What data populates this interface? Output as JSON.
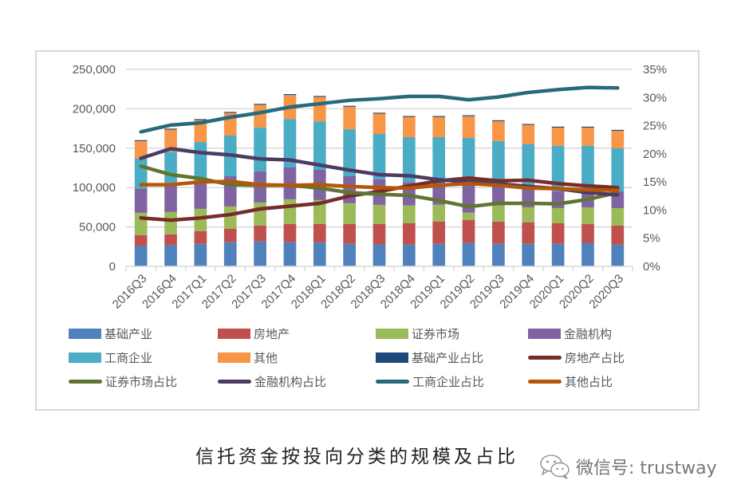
{
  "chart_data": {
    "type": "bar",
    "subtype": "stacked-bar-with-lines",
    "title": "信托资金按投向分类的规模及占比",
    "categories": [
      "2016Q3",
      "2016Q4",
      "2017Q1",
      "2017Q2",
      "2017Q3",
      "2017Q4",
      "2018Q1",
      "2018Q2",
      "2018Q3",
      "2018Q4",
      "2019Q1",
      "2019Q2",
      "2019Q3",
      "2019Q4",
      "2020Q1",
      "2020Q2",
      "2020Q3"
    ],
    "y_left": {
      "ylim": [
        0,
        250000
      ],
      "ticks": [
        "0",
        "50,000",
        "100,000",
        "150,000",
        "200,000",
        "250,000"
      ],
      "tick_values": [
        0,
        50000,
        100000,
        150000,
        200000,
        250000
      ]
    },
    "y_right": {
      "ylim": [
        0,
        35
      ],
      "ticks": [
        "0%",
        "5%",
        "10%",
        "15%",
        "20%",
        "25%",
        "30%",
        "35%"
      ],
      "tick_values": [
        0,
        5,
        10,
        15,
        20,
        25,
        30,
        35
      ]
    },
    "grid": true,
    "legend_position": "bottom",
    "bar_series": [
      {
        "name": "基础产业",
        "color": "#4f81bd",
        "values": [
          25900,
          26900,
          28600,
          30600,
          31600,
          30600,
          30600,
          28600,
          27900,
          27600,
          28600,
          29700,
          28600,
          28600,
          28600,
          29400,
          27600
        ]
      },
      {
        "name": "房地产",
        "color": "#c0504d",
        "values": [
          13800,
          13800,
          16200,
          17200,
          20200,
          23200,
          23200,
          25200,
          25900,
          27100,
          28400,
          29300,
          28400,
          27400,
          26100,
          24200,
          24300
        ]
      },
      {
        "name": "证券市场",
        "color": "#9bbb59",
        "values": [
          28300,
          28300,
          28200,
          28200,
          29300,
          31300,
          30300,
          26300,
          24200,
          22500,
          21200,
          9100,
          20200,
          18900,
          19200,
          21300,
          22000
        ]
      },
      {
        "name": "金融机构",
        "color": "#8064a2",
        "values": [
          30600,
          37000,
          35700,
          38400,
          39400,
          40400,
          38400,
          34300,
          32400,
          29800,
          32100,
          44200,
          28100,
          28300,
          21200,
          19100,
          21200
        ]
      },
      {
        "name": "工商企业",
        "color": "#4bacc6",
        "values": [
          38400,
          39400,
          49100,
          51600,
          55500,
          61500,
          61500,
          59600,
          57600,
          57000,
          53700,
          50700,
          53700,
          51700,
          58000,
          59100,
          54700
        ]
      },
      {
        "name": "其他",
        "color": "#f79646",
        "values": [
          22000,
          28200,
          27900,
          28800,
          29000,
          30400,
          31000,
          28600,
          25800,
          25600,
          25600,
          27600,
          25200,
          24600,
          23000,
          23000,
          22200
        ]
      },
      {
        "name": "基础产业占比",
        "color": "#1f497d",
        "values": [
          1200,
          1200,
          1200,
          1200,
          1200,
          1200,
          1200,
          1200,
          1200,
          1200,
          1200,
          1200,
          1200,
          1200,
          1200,
          1200,
          1200
        ]
      }
    ],
    "line_series": [
      {
        "name": "房地产占比",
        "color": "#772c2a",
        "axis": "right",
        "values": [
          8.6,
          8.2,
          8.6,
          9.2,
          10.2,
          10.7,
          11.2,
          12.5,
          13.3,
          14.3,
          15.2,
          15.7,
          15.2,
          15.3,
          14.7,
          14.3,
          14.0
        ]
      },
      {
        "name": "证券市场占比",
        "color": "#5f7530",
        "axis": "right",
        "values": [
          17.8,
          16.3,
          15.6,
          14.5,
          14.4,
          14.4,
          13.9,
          13.1,
          12.8,
          12.6,
          11.7,
          10.6,
          11.2,
          11.2,
          11.1,
          11.9,
          13.1
        ]
      },
      {
        "name": "金融机构占比",
        "color": "#4d3b62",
        "axis": "right",
        "values": [
          19.2,
          20.9,
          20.2,
          19.8,
          19.1,
          18.9,
          18.0,
          17.1,
          16.3,
          16.1,
          15.4,
          15.0,
          14.7,
          14.2,
          13.8,
          13.1,
          12.7
        ]
      },
      {
        "name": "工商企业占比",
        "color": "#276a7c",
        "axis": "right",
        "values": [
          23.9,
          25.1,
          25.5,
          26.5,
          27.3,
          28.3,
          28.9,
          29.5,
          29.8,
          30.2,
          30.2,
          29.6,
          30.1,
          30.9,
          31.4,
          31.8,
          31.7
        ]
      },
      {
        "name": "其他占比",
        "color": "#b65708",
        "axis": "right",
        "values": [
          14.5,
          14.5,
          15.0,
          15.1,
          14.5,
          14.4,
          14.5,
          14.2,
          14.0,
          13.9,
          14.4,
          14.7,
          14.4,
          13.9,
          13.8,
          13.6,
          13.5
        ]
      }
    ],
    "legend": [
      {
        "label": "基础产业",
        "kind": "box",
        "color": "#4f81bd"
      },
      {
        "label": "房地产",
        "kind": "box",
        "color": "#c0504d"
      },
      {
        "label": "证券市场",
        "kind": "box",
        "color": "#9bbb59"
      },
      {
        "label": "金融机构",
        "kind": "box",
        "color": "#8064a2"
      },
      {
        "label": "工商企业",
        "kind": "box",
        "color": "#4bacc6"
      },
      {
        "label": "其他",
        "kind": "box",
        "color": "#f79646"
      },
      {
        "label": "基础产业占比",
        "kind": "box",
        "color": "#1f497d"
      },
      {
        "label": "房地产占比",
        "kind": "line",
        "color": "#772c2a"
      },
      {
        "label": "证券市场占比",
        "kind": "line",
        "color": "#5f7530"
      },
      {
        "label": "金融机构占比",
        "kind": "line",
        "color": "#4d3b62"
      },
      {
        "label": "工商企业占比",
        "kind": "line",
        "color": "#276a7c"
      },
      {
        "label": "其他占比",
        "kind": "line",
        "color": "#b65708"
      }
    ]
  },
  "caption": "信托资金按投向分类的规模及占比",
  "watermark": {
    "icon": "wechat-icon",
    "text": "微信号: trustway"
  }
}
